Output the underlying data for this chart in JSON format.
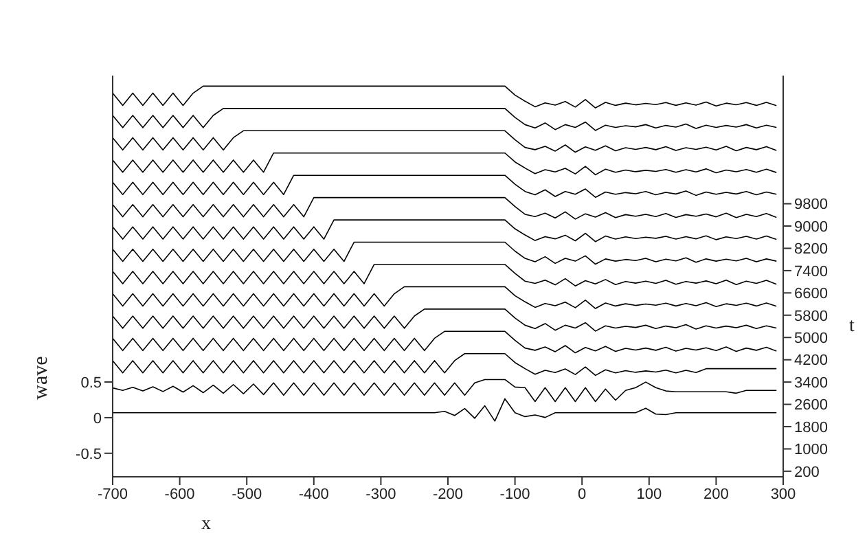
{
  "chart_data": {
    "type": "line",
    "xlabel": "x",
    "ylabel": "wave",
    "y2label": "t",
    "xlim": [
      -700,
      300
    ],
    "xticks": [
      -700,
      -600,
      -500,
      -400,
      -300,
      -200,
      -100,
      0,
      100,
      200,
      300
    ],
    "ylim": [
      -0.83,
      4.8
    ],
    "yticks": [
      -0.5,
      0,
      0.5
    ],
    "y2lim": [
      0,
      14400
    ],
    "y2ticks": [
      200,
      1000,
      1800,
      2600,
      3400,
      4200,
      5000,
      5800,
      6600,
      7400,
      8200,
      9000,
      9800
    ],
    "marker": "none",
    "line_style": "solid",
    "x": [
      -700,
      -685,
      -670,
      -655,
      -640,
      -625,
      -610,
      -595,
      -580,
      -565,
      -550,
      -535,
      -520,
      -505,
      -490,
      -475,
      -460,
      -445,
      -430,
      -415,
      -400,
      -385,
      -370,
      -355,
      -340,
      -325,
      -310,
      -295,
      -280,
      -265,
      -250,
      -235,
      -220,
      -205,
      -190,
      -175,
      -160,
      -145,
      -130,
      -115,
      -100,
      -85,
      -70,
      -55,
      -40,
      -25,
      -10,
      5,
      20,
      35,
      50,
      65,
      80,
      95,
      110,
      125,
      140,
      155,
      170,
      185,
      200,
      215,
      230,
      245,
      260,
      275,
      290
    ],
    "series": [
      {
        "axis": "y2",
        "color": "#000000",
        "values": [
          2300,
          2300,
          2300,
          2300,
          2300,
          2300,
          2300,
          2300,
          2300,
          2300,
          2300,
          2300,
          2300,
          2300,
          2300,
          2300,
          2300,
          2300,
          2300,
          2300,
          2300,
          2300,
          2300,
          2300,
          2300,
          2300,
          2300,
          2300,
          2300,
          2300,
          2300,
          2300,
          2300,
          2350,
          2200,
          2450,
          2100,
          2550,
          2000,
          2800,
          2300,
          2160,
          2220,
          2130,
          2300,
          2300,
          2300,
          2300,
          2300,
          2300,
          2300,
          2300,
          2300,
          2460,
          2250,
          2230,
          2300,
          2300,
          2300,
          2300,
          2300,
          2300,
          2300,
          2300,
          2300,
          2300,
          2300
        ]
      },
      {
        "axis": "y2",
        "color": "#000000",
        "values": [
          3190,
          3100,
          3210,
          3080,
          3230,
          3060,
          3250,
          3040,
          3270,
          3020,
          3290,
          3000,
          3310,
          2980,
          3330,
          2950,
          3370,
          2930,
          3370,
          2930,
          3370,
          2930,
          3370,
          2930,
          3370,
          2930,
          3370,
          2930,
          3370,
          2930,
          3370,
          2930,
          3370,
          2930,
          3370,
          2930,
          3370,
          3490,
          3490,
          3490,
          3220,
          3200,
          2700,
          3200,
          2700,
          3200,
          2700,
          3200,
          2700,
          3150,
          2750,
          3100,
          3200,
          3400,
          3200,
          3080,
          3050,
          3050,
          3050,
          3050,
          3050,
          3050,
          3000,
          3100,
          3100,
          3100,
          3100
        ]
      },
      {
        "axis": "y2",
        "color": "#000000",
        "values": [
          4170,
          3730,
          4170,
          3730,
          4170,
          3730,
          4170,
          3730,
          4170,
          3730,
          4170,
          3730,
          4170,
          3730,
          4170,
          3730,
          4170,
          3730,
          4170,
          3730,
          4170,
          3730,
          4170,
          3730,
          4170,
          3730,
          4170,
          3730,
          4170,
          3730,
          4170,
          3730,
          4170,
          3730,
          4170,
          4420,
          4420,
          4420,
          4420,
          4420,
          4100,
          3880,
          3680,
          3820,
          3740,
          3870,
          3670,
          3940,
          3640,
          3840,
          3730,
          3810,
          3750,
          3800,
          3760,
          3830,
          3730,
          3820,
          3740,
          3880,
          3880,
          3880,
          3880,
          3880,
          3880,
          3880,
          3880
        ]
      },
      {
        "axis": "y2",
        "color": "#000000",
        "values": [
          4970,
          4530,
          4970,
          4530,
          4970,
          4530,
          4970,
          4530,
          4970,
          4530,
          4970,
          4530,
          4970,
          4530,
          4970,
          4530,
          4970,
          4530,
          4970,
          4530,
          4970,
          4530,
          4970,
          4530,
          4970,
          4530,
          4970,
          4530,
          4970,
          4530,
          4970,
          4530,
          4970,
          5220,
          5220,
          5220,
          5220,
          5220,
          5220,
          5220,
          4900,
          4620,
          4540,
          4660,
          4490,
          4710,
          4450,
          4640,
          4520,
          4680,
          4500,
          4610,
          4550,
          4620,
          4540,
          4650,
          4510,
          4610,
          4550,
          4630,
          4530,
          4660,
          4500,
          4620,
          4540,
          4650,
          4510
        ]
      },
      {
        "axis": "y2",
        "color": "#000000",
        "values": [
          5770,
          5330,
          5770,
          5330,
          5770,
          5330,
          5770,
          5330,
          5770,
          5330,
          5770,
          5330,
          5770,
          5330,
          5770,
          5330,
          5770,
          5330,
          5770,
          5330,
          5770,
          5330,
          5770,
          5330,
          5770,
          5330,
          5770,
          5330,
          5770,
          5330,
          5770,
          6020,
          6020,
          6020,
          6020,
          6020,
          6020,
          6020,
          6020,
          6020,
          5700,
          5440,
          5320,
          5500,
          5260,
          5440,
          5340,
          5530,
          5230,
          5420,
          5340,
          5400,
          5360,
          5440,
          5320,
          5410,
          5350,
          5460,
          5300,
          5420,
          5340,
          5410,
          5350,
          5440,
          5320,
          5420,
          5340
        ]
      },
      {
        "axis": "y2",
        "color": "#000000",
        "values": [
          6570,
          6130,
          6570,
          6130,
          6570,
          6130,
          6570,
          6130,
          6570,
          6130,
          6570,
          6130,
          6570,
          6130,
          6570,
          6130,
          6570,
          6130,
          6570,
          6130,
          6570,
          6130,
          6570,
          6130,
          6570,
          6130,
          6570,
          6130,
          6570,
          6820,
          6820,
          6820,
          6820,
          6820,
          6820,
          6820,
          6820,
          6820,
          6820,
          6820,
          6500,
          6280,
          6080,
          6220,
          6140,
          6270,
          6070,
          6340,
          6040,
          6240,
          6130,
          6210,
          6150,
          6200,
          6160,
          6230,
          6130,
          6220,
          6140,
          6250,
          6110,
          6210,
          6150,
          6230,
          6130,
          6240,
          6120
        ]
      },
      {
        "axis": "y2",
        "color": "#000000",
        "values": [
          7370,
          6930,
          7370,
          6930,
          7370,
          6930,
          7370,
          6930,
          7370,
          6930,
          7370,
          6930,
          7370,
          6930,
          7370,
          6930,
          7370,
          6930,
          7370,
          6930,
          7370,
          6930,
          7370,
          6930,
          7370,
          6930,
          7620,
          7620,
          7620,
          7620,
          7620,
          7620,
          7620,
          7620,
          7620,
          7620,
          7620,
          7620,
          7620,
          7620,
          7300,
          7020,
          6940,
          7060,
          6890,
          7110,
          6850,
          7040,
          6920,
          7080,
          6900,
          7010,
          6950,
          7020,
          6940,
          7050,
          6910,
          7010,
          6950,
          7030,
          6930,
          7060,
          6900,
          7020,
          6940,
          7050,
          6910
        ]
      },
      {
        "axis": "y2",
        "color": "#000000",
        "values": [
          8170,
          7730,
          8170,
          7730,
          8170,
          7730,
          8170,
          7730,
          8170,
          7730,
          8170,
          7730,
          8170,
          7730,
          8170,
          7730,
          8170,
          7730,
          8170,
          7730,
          8170,
          7730,
          8170,
          7730,
          8420,
          8420,
          8420,
          8420,
          8420,
          8420,
          8420,
          8420,
          8420,
          8420,
          8420,
          8420,
          8420,
          8420,
          8420,
          8420,
          8100,
          7840,
          7720,
          7900,
          7660,
          7840,
          7740,
          7930,
          7630,
          7820,
          7740,
          7800,
          7760,
          7840,
          7720,
          7810,
          7750,
          7860,
          7700,
          7820,
          7740,
          7810,
          7750,
          7840,
          7720,
          7820,
          7740
        ]
      },
      {
        "axis": "y2",
        "color": "#000000",
        "values": [
          8970,
          8530,
          8970,
          8530,
          8970,
          8530,
          8970,
          8530,
          8970,
          8530,
          8970,
          8530,
          8970,
          8530,
          8970,
          8530,
          8970,
          8530,
          8970,
          8530,
          8970,
          8530,
          9220,
          9220,
          9220,
          9220,
          9220,
          9220,
          9220,
          9220,
          9220,
          9220,
          9220,
          9220,
          9220,
          9220,
          9220,
          9220,
          9220,
          9220,
          8900,
          8680,
          8480,
          8620,
          8540,
          8670,
          8470,
          8740,
          8440,
          8640,
          8530,
          8610,
          8550,
          8600,
          8560,
          8630,
          8530,
          8620,
          8540,
          8650,
          8510,
          8610,
          8550,
          8630,
          8530,
          8640,
          8520
        ]
      },
      {
        "axis": "y2",
        "color": "#000000",
        "values": [
          9770,
          9330,
          9770,
          9330,
          9770,
          9330,
          9770,
          9330,
          9770,
          9330,
          9770,
          9330,
          9770,
          9330,
          9770,
          9330,
          9770,
          9330,
          9770,
          9330,
          10020,
          10020,
          10020,
          10020,
          10020,
          10020,
          10020,
          10020,
          10020,
          10020,
          10020,
          10020,
          10020,
          10020,
          10020,
          10020,
          10020,
          10020,
          10020,
          10020,
          9700,
          9420,
          9340,
          9460,
          9290,
          9510,
          9250,
          9440,
          9320,
          9480,
          9300,
          9410,
          9350,
          9420,
          9340,
          9450,
          9310,
          9410,
          9350,
          9430,
          9330,
          9460,
          9300,
          9420,
          9340,
          9450,
          9310
        ]
      },
      {
        "axis": "y2",
        "color": "#000000",
        "values": [
          10570,
          10130,
          10570,
          10130,
          10570,
          10130,
          10570,
          10130,
          10570,
          10130,
          10570,
          10130,
          10570,
          10130,
          10570,
          10130,
          10570,
          10130,
          10820,
          10820,
          10820,
          10820,
          10820,
          10820,
          10820,
          10820,
          10820,
          10820,
          10820,
          10820,
          10820,
          10820,
          10820,
          10820,
          10820,
          10820,
          10820,
          10820,
          10820,
          10820,
          10500,
          10240,
          10120,
          10300,
          10060,
          10240,
          10140,
          10330,
          10030,
          10220,
          10140,
          10200,
          10160,
          10240,
          10120,
          10210,
          10150,
          10260,
          10100,
          10220,
          10140,
          10210,
          10150,
          10240,
          10120,
          10220,
          10140
        ]
      },
      {
        "axis": "y2",
        "color": "#000000",
        "values": [
          11370,
          10930,
          11370,
          10930,
          11370,
          10930,
          11370,
          10930,
          11370,
          10930,
          11370,
          10930,
          11370,
          10930,
          11370,
          10930,
          11620,
          11620,
          11620,
          11620,
          11620,
          11620,
          11620,
          11620,
          11620,
          11620,
          11620,
          11620,
          11620,
          11620,
          11620,
          11620,
          11620,
          11620,
          11620,
          11620,
          11620,
          11620,
          11620,
          11620,
          11300,
          11080,
          10880,
          11020,
          10940,
          11070,
          10870,
          11140,
          10840,
          11040,
          10930,
          11010,
          10950,
          11000,
          10960,
          11030,
          10930,
          11020,
          10940,
          11050,
          10910,
          11010,
          10950,
          11030,
          10930,
          11040,
          10920
        ]
      },
      {
        "axis": "y2",
        "color": "#000000",
        "values": [
          12170,
          11730,
          12170,
          11730,
          12170,
          11730,
          12170,
          11730,
          12170,
          11730,
          12170,
          11730,
          12170,
          12420,
          12420,
          12420,
          12420,
          12420,
          12420,
          12420,
          12420,
          12420,
          12420,
          12420,
          12420,
          12420,
          12420,
          12420,
          12420,
          12420,
          12420,
          12420,
          12420,
          12420,
          12420,
          12420,
          12420,
          12420,
          12420,
          12420,
          12100,
          11820,
          11740,
          11860,
          11690,
          11910,
          11650,
          11840,
          11720,
          11880,
          11700,
          11810,
          11750,
          11820,
          11740,
          11850,
          11710,
          11810,
          11750,
          11830,
          11730,
          11860,
          11700,
          11820,
          11740,
          11850,
          11710
        ]
      },
      {
        "axis": "y2",
        "color": "#000000",
        "values": [
          12970,
          12530,
          12970,
          12530,
          12970,
          12530,
          12970,
          12530,
          12970,
          12530,
          12970,
          13220,
          13220,
          13220,
          13220,
          13220,
          13220,
          13220,
          13220,
          13220,
          13220,
          13220,
          13220,
          13220,
          13220,
          13220,
          13220,
          13220,
          13220,
          13220,
          13220,
          13220,
          13220,
          13220,
          13220,
          13220,
          13220,
          13220,
          13220,
          13220,
          12900,
          12640,
          12520,
          12700,
          12460,
          12640,
          12540,
          12730,
          12430,
          12620,
          12540,
          12600,
          12560,
          12640,
          12520,
          12610,
          12550,
          12660,
          12500,
          12620,
          12540,
          12610,
          12550,
          12640,
          12520,
          12620,
          12540
        ]
      },
      {
        "axis": "y2",
        "color": "#000000",
        "values": [
          13770,
          13330,
          13770,
          13330,
          13770,
          13330,
          13770,
          13330,
          13770,
          14020,
          14020,
          14020,
          14020,
          14020,
          14020,
          14020,
          14020,
          14020,
          14020,
          14020,
          14020,
          14020,
          14020,
          14020,
          14020,
          14020,
          14020,
          14020,
          14020,
          14020,
          14020,
          14020,
          14020,
          14020,
          14020,
          14020,
          14020,
          14020,
          14020,
          14020,
          13700,
          13480,
          13280,
          13420,
          13340,
          13470,
          13270,
          13540,
          13240,
          13440,
          13330,
          13410,
          13350,
          13400,
          13360,
          13430,
          13330,
          13420,
          13340,
          13450,
          13310,
          13410,
          13350,
          13430,
          13330,
          13440,
          13320
        ]
      }
    ]
  }
}
